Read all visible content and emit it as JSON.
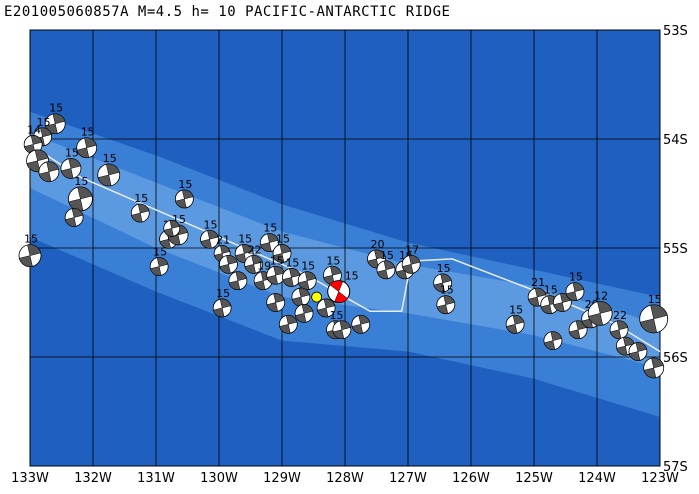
{
  "header": {
    "title": "E201005060857A M=4.5 h= 10 PACIFIC-ANTARCTIC RIDGE"
  },
  "map": {
    "lon_range": [
      -133,
      -123
    ],
    "lat_range": [
      -57,
      -53
    ],
    "colors": {
      "deep_ocean": "#1f5fbf",
      "shallow_ocean": "#3a7fd6",
      "ridge": "#5b99e0",
      "grid": "#000000",
      "plate_boundary": "#e6ecf5",
      "focal_dark": "#555555",
      "focal_light": "#ffffff",
      "main_event": "#ff0000",
      "epicenter": "#ffff00"
    },
    "lon_ticks": [
      {
        "value": -133,
        "label": "133W"
      },
      {
        "value": -132,
        "label": "132W"
      },
      {
        "value": -131,
        "label": "131W"
      },
      {
        "value": -130,
        "label": "130W"
      },
      {
        "value": -129,
        "label": "129W"
      },
      {
        "value": -128,
        "label": "128W"
      },
      {
        "value": -127,
        "label": "127W"
      },
      {
        "value": -126,
        "label": "126W"
      },
      {
        "value": -125,
        "label": "125W"
      },
      {
        "value": -124,
        "label": "124W"
      },
      {
        "value": -123,
        "label": "123W"
      }
    ],
    "lat_ticks": [
      {
        "value": -53,
        "label": "53S"
      },
      {
        "value": -54,
        "label": "54S"
      },
      {
        "value": -55,
        "label": "55S"
      },
      {
        "value": -56,
        "label": "56S"
      },
      {
        "value": -57,
        "label": "57S"
      }
    ],
    "plate_boundary": [
      [
        -133.0,
        -54.05
      ],
      [
        -132.2,
        -54.35
      ],
      [
        -131.2,
        -54.6
      ],
      [
        -130.4,
        -54.8
      ],
      [
        -129.4,
        -55.05
      ],
      [
        -128.6,
        -55.25
      ],
      [
        -128.0,
        -55.45
      ],
      [
        -127.6,
        -55.58
      ],
      [
        -127.1,
        -55.58
      ],
      [
        -126.95,
        -55.12
      ],
      [
        -126.3,
        -55.1
      ],
      [
        -125.4,
        -55.3
      ],
      [
        -124.5,
        -55.5
      ],
      [
        -123.7,
        -55.7
      ],
      [
        -123.0,
        -55.95
      ]
    ],
    "main_event": {
      "lon": -128.1,
      "lat": -55.4,
      "label": "15"
    },
    "epicenter": {
      "lon": -128.45,
      "lat": -55.45
    },
    "events": [
      {
        "lon": -132.6,
        "lat": -53.86,
        "label": "15",
        "s": 10
      },
      {
        "lon": -132.8,
        "lat": -53.98,
        "label": "15",
        "s": 9
      },
      {
        "lon": -132.95,
        "lat": -54.05,
        "label": "14",
        "s": 9
      },
      {
        "lon": -132.88,
        "lat": -54.2,
        "label": "",
        "s": 11
      },
      {
        "lon": -132.7,
        "lat": -54.3,
        "label": "",
        "s": 10
      },
      {
        "lon": -132.35,
        "lat": -54.27,
        "label": "15",
        "s": 10
      },
      {
        "lon": -132.1,
        "lat": -54.08,
        "label": "15",
        "s": 10
      },
      {
        "lon": -132.2,
        "lat": -54.55,
        "label": "15",
        "s": 12
      },
      {
        "lon": -132.3,
        "lat": -54.72,
        "label": "",
        "s": 9
      },
      {
        "lon": -131.75,
        "lat": -54.33,
        "label": "15",
        "s": 11
      },
      {
        "lon": -133.0,
        "lat": -55.07,
        "label": "15",
        "s": 11
      },
      {
        "lon": -131.25,
        "lat": -54.68,
        "label": "15",
        "s": 9
      },
      {
        "lon": -130.8,
        "lat": -54.92,
        "label": "15",
        "s": 9
      },
      {
        "lon": -130.65,
        "lat": -54.88,
        "label": "15",
        "s": 10
      },
      {
        "lon": -130.75,
        "lat": -54.82,
        "label": "",
        "s": 8
      },
      {
        "lon": -130.55,
        "lat": -54.55,
        "label": "15",
        "s": 9
      },
      {
        "lon": -130.95,
        "lat": -55.17,
        "label": "15",
        "s": 9
      },
      {
        "lon": -130.15,
        "lat": -54.92,
        "label": "15",
        "s": 9
      },
      {
        "lon": -129.95,
        "lat": -55.05,
        "label": "21",
        "s": 8
      },
      {
        "lon": -129.85,
        "lat": -55.15,
        "label": "",
        "s": 9
      },
      {
        "lon": -129.6,
        "lat": -55.05,
        "label": "15",
        "s": 9
      },
      {
        "lon": -129.45,
        "lat": -55.15,
        "label": "22",
        "s": 9
      },
      {
        "lon": -129.2,
        "lat": -54.95,
        "label": "15",
        "s": 9
      },
      {
        "lon": -129.0,
        "lat": -55.05,
        "label": "15",
        "s": 9
      },
      {
        "lon": -129.7,
        "lat": -55.3,
        "label": "",
        "s": 9
      },
      {
        "lon": -129.3,
        "lat": -55.3,
        "label": "19",
        "s": 9
      },
      {
        "lon": -129.1,
        "lat": -55.25,
        "label": "15",
        "s": 9
      },
      {
        "lon": -128.85,
        "lat": -55.27,
        "label": "15",
        "s": 9
      },
      {
        "lon": -128.6,
        "lat": -55.3,
        "label": "15",
        "s": 9
      },
      {
        "lon": -128.2,
        "lat": -55.25,
        "label": "15",
        "s": 9
      },
      {
        "lon": -129.1,
        "lat": -55.5,
        "label": "",
        "s": 9
      },
      {
        "lon": -128.7,
        "lat": -55.45,
        "label": "",
        "s": 9
      },
      {
        "lon": -128.9,
        "lat": -55.7,
        "label": "",
        "s": 9
      },
      {
        "lon": -128.3,
        "lat": -55.55,
        "label": "",
        "s": 9
      },
      {
        "lon": -128.15,
        "lat": -55.75,
        "label": "15",
        "s": 9
      },
      {
        "lon": -128.05,
        "lat": -55.75,
        "label": "",
        "s": 9
      },
      {
        "lon": -127.75,
        "lat": -55.7,
        "label": "",
        "s": 9
      },
      {
        "lon": -128.65,
        "lat": -55.6,
        "label": "",
        "s": 9
      },
      {
        "lon": -129.95,
        "lat": -55.55,
        "label": "15",
        "s": 9
      },
      {
        "lon": -127.5,
        "lat": -55.1,
        "label": "20",
        "s": 9
      },
      {
        "lon": -127.35,
        "lat": -55.2,
        "label": "15",
        "s": 9
      },
      {
        "lon": -127.05,
        "lat": -55.2,
        "label": "16",
        "s": 9
      },
      {
        "lon": -126.95,
        "lat": -55.15,
        "label": "17",
        "s": 9
      },
      {
        "lon": -126.45,
        "lat": -55.32,
        "label": "15",
        "s": 9
      },
      {
        "lon": -126.4,
        "lat": -55.52,
        "label": "15",
        "s": 9
      },
      {
        "lon": -125.3,
        "lat": -55.7,
        "label": "15",
        "s": 9
      },
      {
        "lon": -124.95,
        "lat": -55.45,
        "label": "21",
        "s": 9
      },
      {
        "lon": -124.75,
        "lat": -55.52,
        "label": "15",
        "s": 9
      },
      {
        "lon": -124.55,
        "lat": -55.5,
        "label": "",
        "s": 9
      },
      {
        "lon": -124.35,
        "lat": -55.4,
        "label": "15",
        "s": 9
      },
      {
        "lon": -124.7,
        "lat": -55.85,
        "label": "",
        "s": 9
      },
      {
        "lon": -124.3,
        "lat": -55.75,
        "label": "",
        "s": 9
      },
      {
        "lon": -124.1,
        "lat": -55.65,
        "label": "20",
        "s": 9
      },
      {
        "lon": -123.95,
        "lat": -55.6,
        "label": "12",
        "s": 12
      },
      {
        "lon": -123.65,
        "lat": -55.75,
        "label": "22",
        "s": 9
      },
      {
        "lon": -123.55,
        "lat": -55.9,
        "label": "",
        "s": 9
      },
      {
        "lon": -123.35,
        "lat": -55.95,
        "label": "",
        "s": 9
      },
      {
        "lon": -123.1,
        "lat": -55.65,
        "label": "15",
        "s": 14
      },
      {
        "lon": -123.1,
        "lat": -56.1,
        "label": "",
        "s": 10
      }
    ]
  }
}
